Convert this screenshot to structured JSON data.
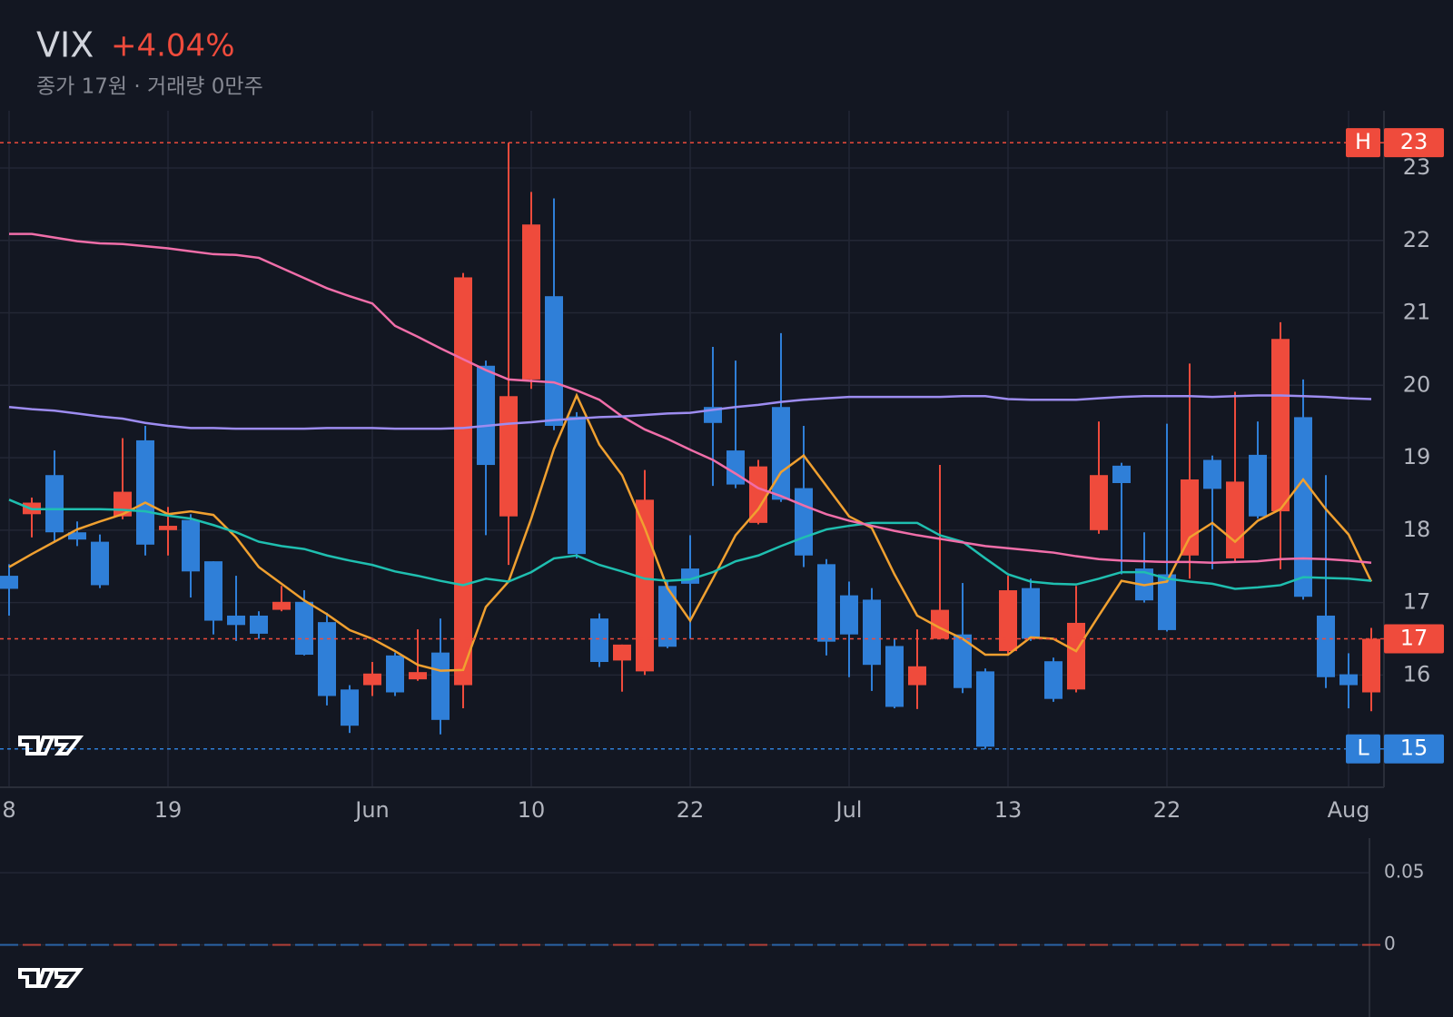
{
  "chart_data": {
    "type": "candlestick",
    "title": "VIX",
    "change": "+4.04%",
    "subtitle": "종가 17원 · 거래량 0만주",
    "categories": [
      "8",
      null,
      null,
      null,
      null,
      null,
      null,
      "19",
      null,
      null,
      null,
      null,
      null,
      null,
      null,
      null,
      "Jun",
      null,
      null,
      null,
      null,
      null,
      null,
      "10",
      null,
      null,
      null,
      null,
      null,
      null,
      "22",
      null,
      null,
      null,
      null,
      null,
      null,
      "Jul",
      null,
      null,
      null,
      null,
      null,
      null,
      "13",
      null,
      null,
      null,
      null,
      null,
      null,
      "22",
      null,
      null,
      null,
      null,
      null,
      null,
      null,
      "Aug",
      null
    ],
    "open": [
      17.37,
      18.22,
      18.76,
      17.97,
      17.84,
      18.19,
      19.24,
      18.0,
      18.14,
      17.57,
      16.82,
      16.82,
      16.9,
      17.01,
      16.73,
      15.8,
      15.86,
      16.27,
      15.94,
      16.31,
      15.86,
      20.27,
      18.19,
      20.08,
      21.23,
      19.57,
      16.78,
      16.2,
      16.05,
      17.23,
      17.47,
      19.7,
      19.1,
      18.1,
      19.7,
      18.58,
      17.53,
      17.1,
      17.04,
      16.4,
      15.86,
      16.5,
      16.56,
      16.05,
      16.33,
      17.2,
      16.19,
      15.8,
      18.0,
      18.89,
      17.47,
      17.39,
      17.65,
      18.97,
      17.61,
      19.04,
      18.26,
      19.56,
      16.82,
      16.01,
      15.76
    ],
    "high": [
      17.53,
      18.45,
      19.1,
      18.12,
      17.94,
      19.27,
      19.44,
      18.32,
      18.22,
      17.57,
      17.37,
      16.88,
      17.23,
      17.17,
      16.86,
      15.86,
      16.18,
      16.31,
      16.63,
      16.78,
      21.55,
      20.34,
      23.35,
      22.67,
      22.58,
      19.63,
      16.85,
      16.42,
      18.83,
      17.29,
      17.93,
      20.53,
      20.34,
      18.97,
      20.72,
      19.44,
      17.6,
      17.29,
      17.2,
      16.5,
      16.63,
      18.9,
      17.27,
      16.09,
      17.37,
      17.33,
      16.24,
      17.23,
      19.5,
      18.93,
      17.97,
      19.47,
      20.3,
      19.03,
      19.91,
      19.5,
      20.87,
      20.08,
      18.76,
      16.3,
      16.65
    ],
    "low": [
      16.82,
      17.9,
      17.84,
      17.78,
      17.2,
      18.15,
      17.65,
      17.65,
      17.07,
      16.56,
      16.47,
      16.5,
      16.88,
      16.27,
      15.58,
      15.2,
      15.71,
      15.71,
      15.92,
      15.18,
      15.54,
      17.93,
      17.52,
      19.95,
      19.38,
      17.61,
      16.11,
      15.77,
      16.0,
      16.37,
      16.5,
      18.61,
      18.58,
      18.08,
      18.39,
      17.49,
      16.27,
      15.97,
      15.78,
      15.54,
      15.53,
      16.5,
      15.75,
      14.98,
      16.27,
      16.47,
      15.63,
      15.76,
      17.95,
      17.39,
      17.0,
      16.6,
      17.33,
      17.46,
      17.55,
      18.16,
      17.46,
      17.04,
      15.82,
      15.54,
      15.5
    ],
    "close": [
      17.19,
      18.38,
      17.97,
      17.87,
      17.24,
      18.53,
      17.8,
      18.06,
      17.43,
      16.75,
      16.69,
      16.57,
      17.01,
      16.28,
      15.71,
      15.3,
      16.02,
      15.76,
      16.04,
      15.38,
      21.49,
      18.9,
      19.85,
      22.22,
      19.44,
      17.67,
      16.18,
      16.42,
      18.42,
      16.39,
      17.26,
      19.48,
      18.63,
      18.88,
      18.42,
      17.65,
      16.46,
      16.56,
      16.14,
      15.56,
      16.12,
      16.9,
      15.82,
      15.01,
      17.17,
      16.5,
      15.67,
      16.72,
      18.76,
      18.65,
      17.03,
      16.62,
      18.7,
      18.57,
      18.67,
      18.19,
      20.64,
      17.08,
      15.97,
      15.86,
      16.5
    ],
    "up_color": "#ef4b3c",
    "down_color": "#2f7fd8",
    "series": [
      {
        "color": "#f0a030",
        "values": [
          17.49,
          17.67,
          17.84,
          18.01,
          18.12,
          18.22,
          18.38,
          18.22,
          18.26,
          18.21,
          17.9,
          17.49,
          17.26,
          17.03,
          16.84,
          16.62,
          16.5,
          16.33,
          16.14,
          16.06,
          16.07,
          16.94,
          17.29,
          18.16,
          19.12,
          19.86,
          19.18,
          18.76,
          18.03,
          17.2,
          16.75,
          17.33,
          17.93,
          18.29,
          18.8,
          19.03,
          18.61,
          18.19,
          18.03,
          17.39,
          16.82,
          16.65,
          16.5,
          16.28,
          16.28,
          16.52,
          16.5,
          16.33,
          16.82,
          17.3,
          17.24,
          17.29,
          17.9,
          18.1,
          17.84,
          18.13,
          18.29,
          18.7,
          18.29,
          17.94,
          17.29
        ]
      },
      {
        "color": "#1fbfb0",
        "values": [
          18.42,
          18.29,
          18.29,
          18.29,
          18.29,
          18.28,
          18.26,
          18.2,
          18.16,
          18.07,
          17.97,
          17.84,
          17.78,
          17.74,
          17.65,
          17.58,
          17.52,
          17.43,
          17.37,
          17.3,
          17.24,
          17.33,
          17.29,
          17.42,
          17.61,
          17.65,
          17.52,
          17.43,
          17.33,
          17.3,
          17.32,
          17.42,
          17.57,
          17.65,
          17.78,
          17.9,
          18.01,
          18.06,
          18.1,
          18.1,
          18.1,
          17.93,
          17.84,
          17.61,
          17.39,
          17.29,
          17.26,
          17.25,
          17.33,
          17.42,
          17.42,
          17.33,
          17.29,
          17.26,
          17.19,
          17.21,
          17.24,
          17.35,
          17.34,
          17.33,
          17.3
        ]
      },
      {
        "color": "#f06ea9",
        "values": [
          22.09,
          22.09,
          22.04,
          21.99,
          21.96,
          21.95,
          21.92,
          21.89,
          21.85,
          21.81,
          21.8,
          21.76,
          21.62,
          21.48,
          21.34,
          21.23,
          21.13,
          20.82,
          20.67,
          20.51,
          20.36,
          20.21,
          20.08,
          20.06,
          20.04,
          19.93,
          19.8,
          19.57,
          19.39,
          19.26,
          19.11,
          18.97,
          18.78,
          18.58,
          18.47,
          18.34,
          18.22,
          18.13,
          18.06,
          17.99,
          17.93,
          17.88,
          17.83,
          17.78,
          17.75,
          17.72,
          17.69,
          17.64,
          17.6,
          17.58,
          17.57,
          17.56,
          17.56,
          17.55,
          17.56,
          17.57,
          17.6,
          17.61,
          17.6,
          17.58,
          17.55
        ]
      },
      {
        "color": "#9d8cf0",
        "values": [
          19.7,
          19.67,
          19.65,
          19.61,
          19.57,
          19.54,
          19.48,
          19.44,
          19.41,
          19.41,
          19.4,
          19.4,
          19.4,
          19.4,
          19.41,
          19.41,
          19.41,
          19.4,
          19.4,
          19.4,
          19.41,
          19.44,
          19.47,
          19.49,
          19.52,
          19.54,
          19.56,
          19.57,
          19.59,
          19.61,
          19.62,
          19.66,
          19.7,
          19.73,
          19.77,
          19.8,
          19.82,
          19.84,
          19.84,
          19.84,
          19.84,
          19.84,
          19.85,
          19.85,
          19.81,
          19.8,
          19.8,
          19.8,
          19.82,
          19.84,
          19.85,
          19.85,
          19.85,
          19.84,
          19.85,
          19.86,
          19.86,
          19.85,
          19.84,
          19.82,
          19.81
        ]
      }
    ],
    "ylim": [
      14.45,
      23.79
    ],
    "yticks": [
      16,
      17,
      18,
      19,
      20,
      21,
      22,
      23
    ],
    "grid": true,
    "high_marker": {
      "letter": "H",
      "value": 23.35,
      "label": "23"
    },
    "low_marker": {
      "letter": "L",
      "value": 14.98,
      "label": "15"
    },
    "last_marker": {
      "value": 16.5,
      "label": "17"
    },
    "volume": {
      "values": [
        0,
        0,
        0,
        0,
        0,
        0,
        0,
        0,
        0,
        0,
        0,
        0,
        0,
        0,
        0,
        0,
        0,
        0,
        0,
        0,
        0,
        0,
        0,
        0,
        0,
        0,
        0,
        0,
        0,
        0,
        0,
        0,
        0,
        0,
        0,
        0,
        0,
        0,
        0,
        0,
        0,
        0,
        0,
        0,
        0,
        0,
        0,
        0,
        0,
        0,
        0,
        0,
        0,
        0,
        0,
        0,
        0,
        0,
        0,
        0,
        0
      ],
      "ylim": [
        -0.05,
        0.074
      ],
      "yticks": [
        0.05,
        0
      ]
    }
  }
}
